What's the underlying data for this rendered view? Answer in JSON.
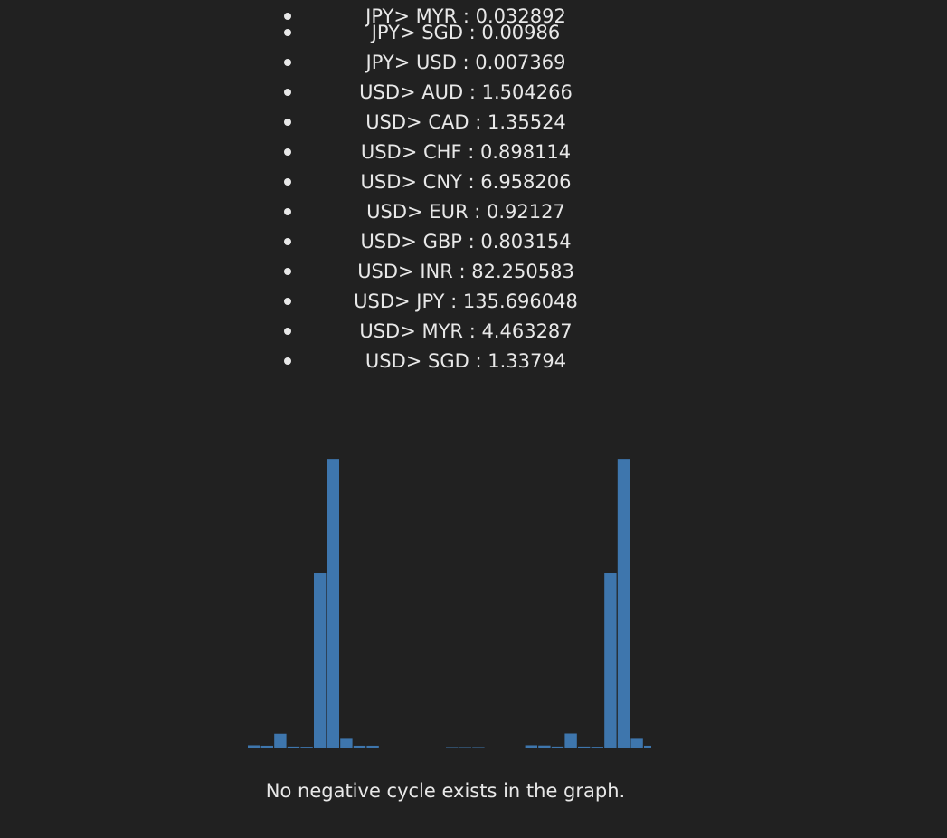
{
  "rates": [
    {
      "label": "JPY> MYR : 0.032892"
    },
    {
      "label": "JPY> SGD : 0.00986"
    },
    {
      "label": "JPY> USD : 0.007369"
    },
    {
      "label": "USD> AUD : 1.504266"
    },
    {
      "label": "USD> CAD : 1.35524"
    },
    {
      "label": "USD> CHF : 0.898114"
    },
    {
      "label": "USD> CNY : 6.958206"
    },
    {
      "label": "USD> EUR : 0.92127"
    },
    {
      "label": "USD> GBP : 0.803154"
    },
    {
      "label": "USD> INR : 82.250583"
    },
    {
      "label": "USD> JPY : 135.696048"
    },
    {
      "label": "USD> MYR : 4.463287"
    },
    {
      "label": "USD> SGD : 1.33794"
    }
  ],
  "chart_data": {
    "type": "bar",
    "bar_color": "#3e76ad",
    "values": [
      1.5,
      1.3,
      6.9,
      0.9,
      0.8,
      82.3,
      135.7,
      4.5,
      1.3,
      1.3,
      0,
      0,
      0,
      0,
      0,
      0.0073,
      0.0099,
      0.0328,
      0,
      0,
      0,
      1.5,
      1.4,
      0.9,
      7.0,
      0.9,
      0.8,
      82.3,
      135.7,
      4.5,
      1.3
    ],
    "ylim": [
      0,
      140
    ]
  },
  "status": {
    "message": "No negative cycle exists in the graph."
  }
}
